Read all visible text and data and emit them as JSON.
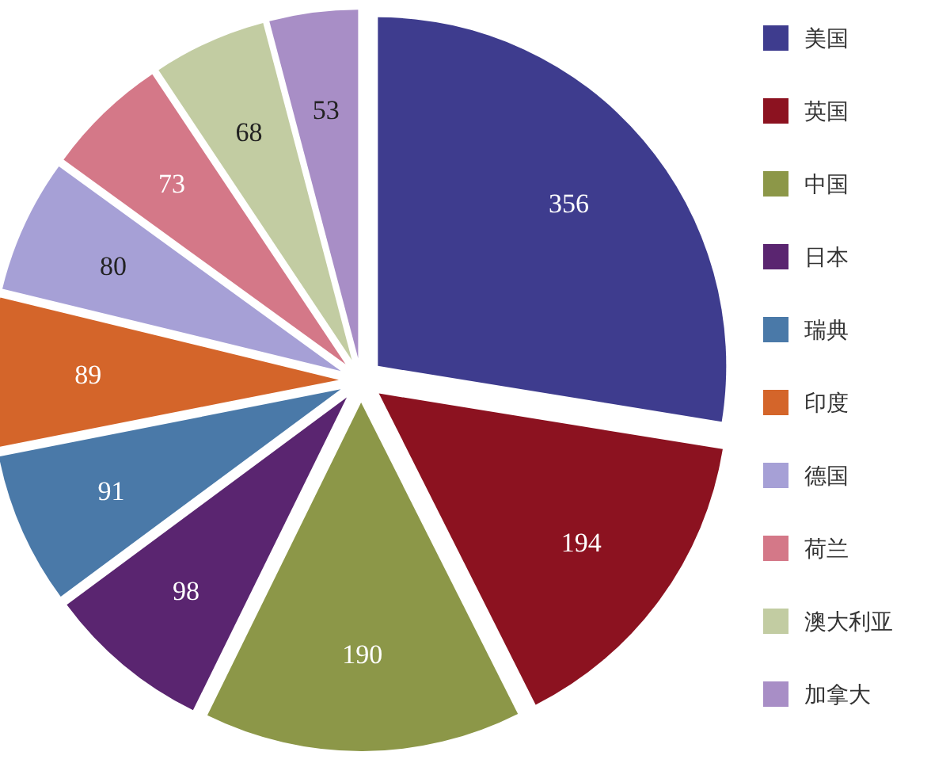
{
  "chart_data": {
    "type": "pie",
    "categories": [
      "美国",
      "英国",
      "中国",
      "日本",
      "瑞典",
      "印度",
      "德国",
      "荷兰",
      "澳大利亚",
      "加拿大"
    ],
    "values": [
      356,
      194,
      190,
      98,
      91,
      89,
      80,
      73,
      68,
      53
    ],
    "colors": [
      "#3e3c8e",
      "#8c1220",
      "#8c9748",
      "#5a2570",
      "#4a79a8",
      "#d4652a",
      "#a6a0d6",
      "#d47888",
      "#c2cca2",
      "#a88ec6"
    ],
    "data_labels": true,
    "legend": "right"
  }
}
